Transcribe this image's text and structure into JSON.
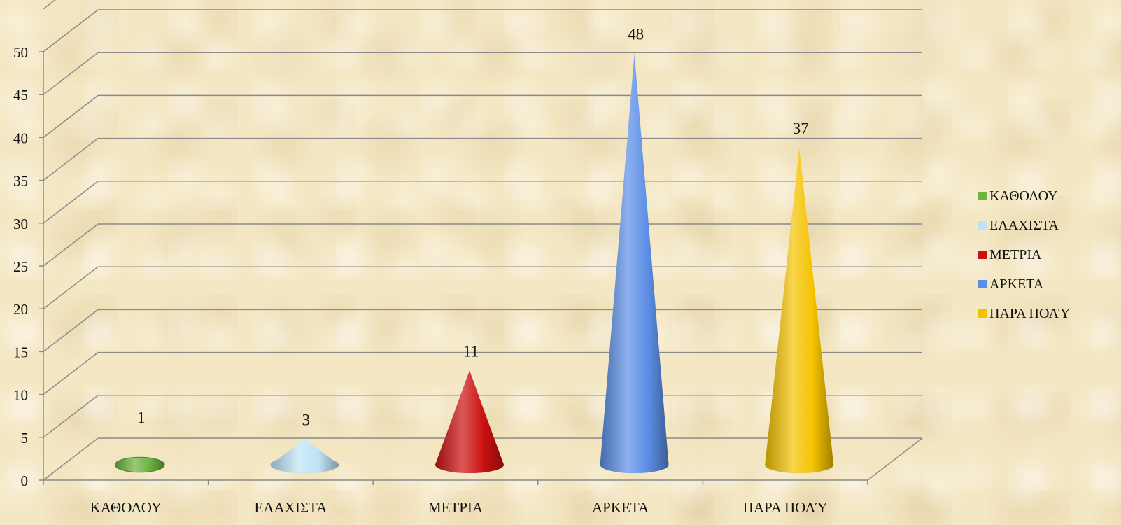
{
  "chart_data": {
    "type": "bar",
    "bar_shape": "cone-3d",
    "categories": [
      "ΚΑΘΟΛΟΥ",
      "ΕΛΑΧΙΣΤΑ",
      "ΜΕΤΡΙΑ",
      "ΑΡΚΕΤΑ",
      "ΠΑΡΑ ΠΟΛΎ"
    ],
    "values": [
      1,
      3,
      11,
      48,
      37
    ],
    "data_labels": [
      "1",
      "3",
      "11",
      "48",
      "37"
    ],
    "colors": [
      "#6db33f",
      "#bfe3f5",
      "#cc1111",
      "#5b8ee6",
      "#f5c200"
    ],
    "ylim": [
      0,
      50
    ],
    "yticks": [
      "0",
      "5",
      "10",
      "15",
      "20",
      "25",
      "30",
      "35",
      "40",
      "45",
      "50"
    ],
    "grid": true,
    "legend": {
      "position": "right",
      "entries": [
        "ΚΑΘΟΛΟΥ",
        "ΕΛΑΧΙΣΤΑ",
        "ΜΕΤΡΙΑ",
        "ΑΡΚΕΤΑ",
        "ΠΑΡΑ ΠΟΛΎ"
      ]
    },
    "title": "",
    "xlabel": "",
    "ylabel": ""
  }
}
